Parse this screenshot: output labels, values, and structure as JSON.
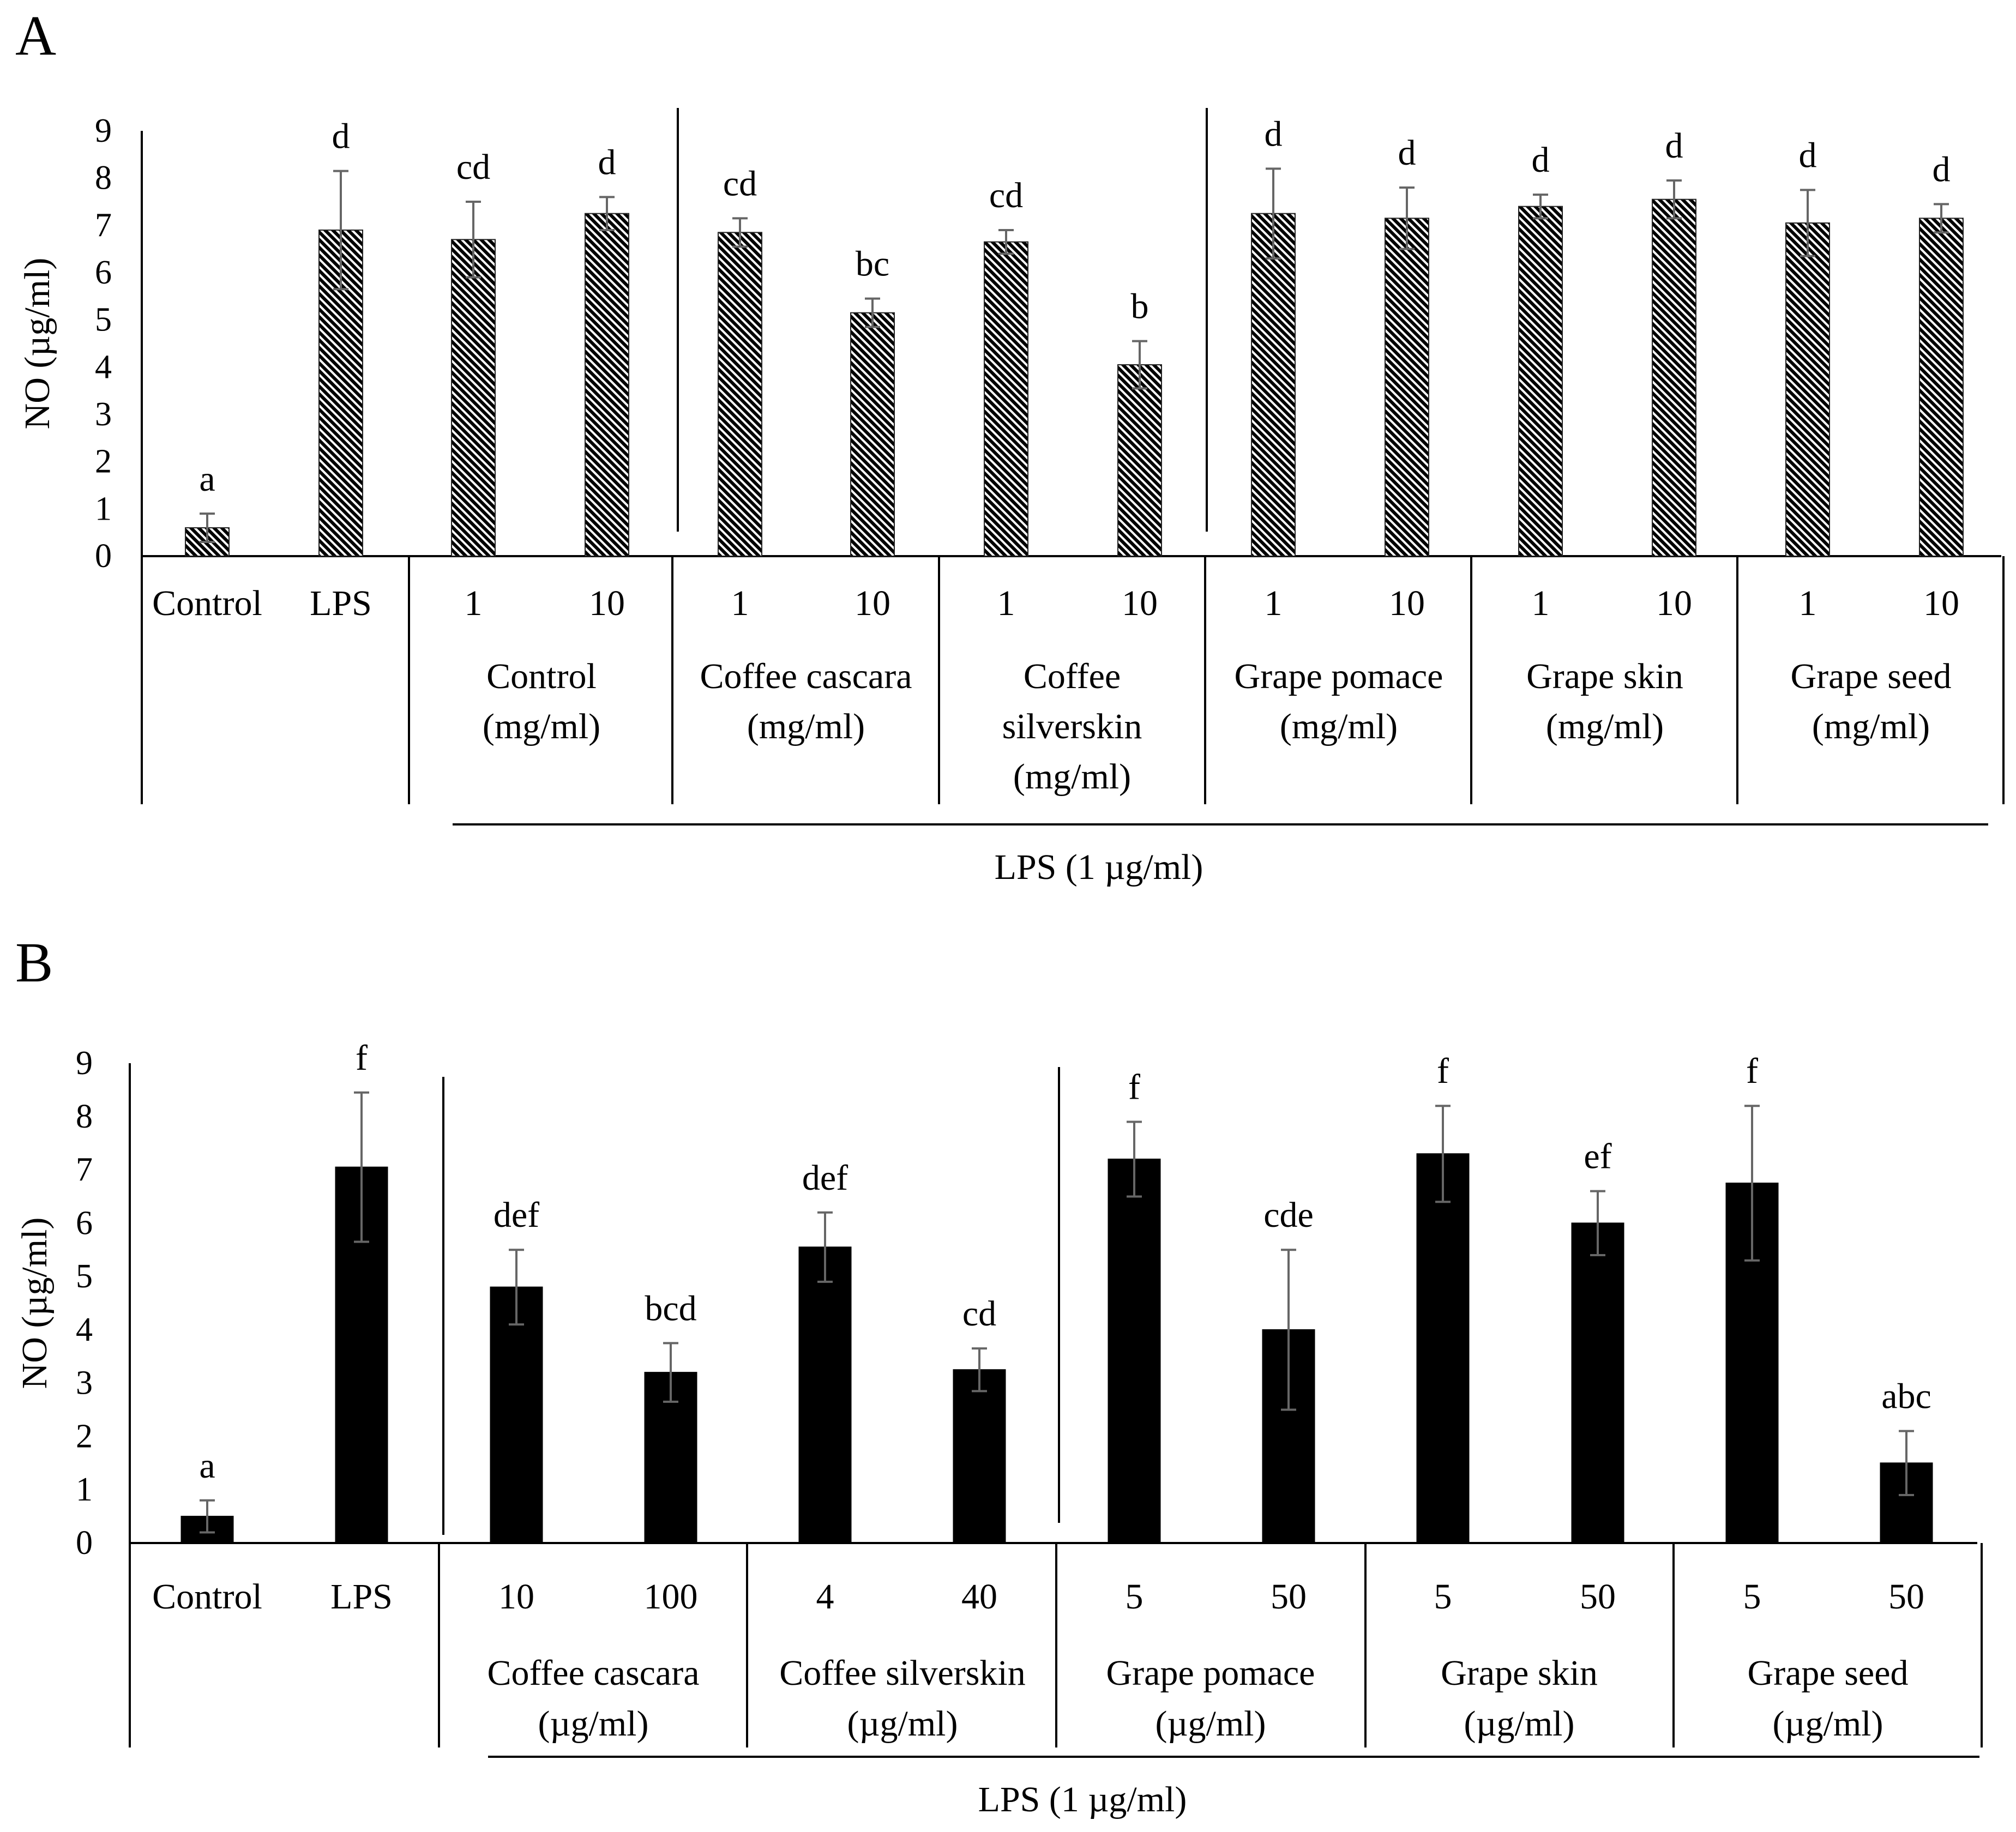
{
  "chart_data": [
    {
      "type": "bar",
      "panel_label": "A",
      "ylabel": "NO (µg/ml)",
      "ylim": [
        0,
        9
      ],
      "yticks": [
        "0",
        "1",
        "2",
        "3",
        "4",
        "5",
        "6",
        "7",
        "8",
        "9"
      ],
      "fill": "hatched",
      "bars": [
        {
          "label": "Control",
          "value": 0.6,
          "error": 0.3,
          "letter": "a"
        },
        {
          "label": "LPS",
          "value": 6.9,
          "error": 1.25,
          "letter": "d"
        },
        {
          "label": "1",
          "value": 6.7,
          "error": 0.8,
          "letter": "cd"
        },
        {
          "label": "10",
          "value": 7.25,
          "error": 0.35,
          "letter": "d"
        },
        {
          "label": "1",
          "value": 6.85,
          "error": 0.3,
          "letter": "cd"
        },
        {
          "label": "10",
          "value": 5.15,
          "error": 0.3,
          "letter": "bc"
        },
        {
          "label": "1",
          "value": 6.65,
          "error": 0.25,
          "letter": "cd"
        },
        {
          "label": "10",
          "value": 4.05,
          "error": 0.5,
          "letter": "b"
        },
        {
          "label": "1",
          "value": 7.25,
          "error": 0.95,
          "letter": "d"
        },
        {
          "label": "10",
          "value": 7.15,
          "error": 0.65,
          "letter": "d"
        },
        {
          "label": "1",
          "value": 7.4,
          "error": 0.25,
          "letter": "d"
        },
        {
          "label": "10",
          "value": 7.55,
          "error": 0.4,
          "letter": "d"
        },
        {
          "label": "1",
          "value": 7.05,
          "error": 0.7,
          "letter": "d"
        },
        {
          "label": "10",
          "value": 7.15,
          "error": 0.3,
          "letter": "d"
        }
      ],
      "groups": [
        {
          "lines": [
            "Control",
            "(mg/ml)"
          ]
        },
        {
          "lines": [
            "Coffee cascara",
            "(mg/ml)"
          ]
        },
        {
          "lines": [
            "Coffee",
            "silverskin",
            "(mg/ml)"
          ]
        },
        {
          "lines": [
            "Grape pomace",
            "(mg/ml)"
          ]
        },
        {
          "lines": [
            "Grape skin",
            "(mg/ml)"
          ]
        },
        {
          "lines": [
            "Grape seed",
            "(mg/ml)"
          ]
        }
      ],
      "bracket_label": "LPS (1 µg/ml)"
    },
    {
      "type": "bar",
      "panel_label": "B",
      "ylabel": "NO (µg/ml)",
      "ylim": [
        0,
        9
      ],
      "yticks": [
        "0",
        "1",
        "2",
        "3",
        "4",
        "5",
        "6",
        "7",
        "8",
        "9"
      ],
      "fill": "solid",
      "bars": [
        {
          "label": "Control",
          "value": 0.5,
          "error": 0.3,
          "letter": "a"
        },
        {
          "label": "LPS",
          "value": 7.05,
          "error": 1.4,
          "letter": "f"
        },
        {
          "label": "10",
          "value": 4.8,
          "error": 0.7,
          "letter": "def"
        },
        {
          "label": "100",
          "value": 3.2,
          "error": 0.55,
          "letter": "bcd"
        },
        {
          "label": "4",
          "value": 5.55,
          "error": 0.65,
          "letter": "def"
        },
        {
          "label": "40",
          "value": 3.25,
          "error": 0.4,
          "letter": "cd"
        },
        {
          "label": "5",
          "value": 7.2,
          "error": 0.7,
          "letter": "f"
        },
        {
          "label": "50",
          "value": 4.0,
          "error": 1.5,
          "letter": "cde"
        },
        {
          "label": "5",
          "value": 7.3,
          "error": 0.9,
          "letter": "f"
        },
        {
          "label": "50",
          "value": 6.0,
          "error": 0.6,
          "letter": "ef"
        },
        {
          "label": "5",
          "value": 6.75,
          "error": 1.45,
          "letter": "f"
        },
        {
          "label": "50",
          "value": 1.5,
          "error": 0.6,
          "letter": "abc"
        }
      ],
      "groups": [
        {
          "lines": [
            "Coffee cascara",
            "(µg/ml)"
          ]
        },
        {
          "lines": [
            "Coffee silverskin",
            "(µg/ml)"
          ]
        },
        {
          "lines": [
            "Grape pomace",
            "(µg/ml)"
          ]
        },
        {
          "lines": [
            "Grape skin",
            "(µg/ml)"
          ]
        },
        {
          "lines": [
            "Grape seed",
            "(µg/ml)"
          ]
        }
      ],
      "bracket_label": "LPS (1 µg/ml)"
    }
  ]
}
